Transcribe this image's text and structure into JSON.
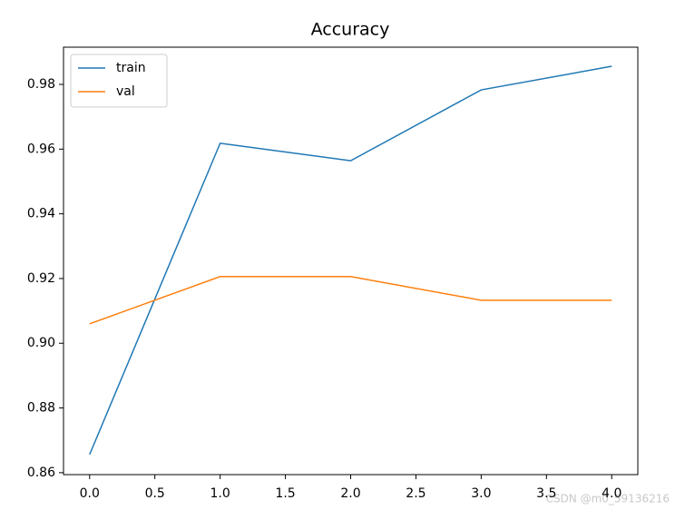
{
  "chart_data": {
    "type": "line",
    "title": "Accuracy",
    "x": [
      0,
      1,
      2,
      3,
      4
    ],
    "series": [
      {
        "name": "train",
        "color": "#1f77b4",
        "values": [
          0.8656,
          0.9618,
          0.9564,
          0.9783,
          0.9856
        ]
      },
      {
        "name": "val",
        "color": "#ff7f0e",
        "values": [
          0.906,
          0.9206,
          0.9206,
          0.9133,
          0.9133
        ]
      }
    ],
    "xlim": [
      -0.2,
      4.2
    ],
    "xticks": [
      {
        "value": 0,
        "label": "0.0"
      },
      {
        "value": 0.5,
        "label": "0.5"
      },
      {
        "value": 1,
        "label": "1.0"
      },
      {
        "value": 1.5,
        "label": "1.5"
      },
      {
        "value": 2,
        "label": "2.0"
      },
      {
        "value": 2.5,
        "label": "2.5"
      },
      {
        "value": 3,
        "label": "3.0"
      },
      {
        "value": 3.5,
        "label": "3.5"
      },
      {
        "value": 4,
        "label": "4.0"
      }
    ],
    "ylim": [
      0.8594,
      0.9915
    ],
    "yticks": [
      0.86,
      0.88,
      {
        "value": 0.9,
        "label": "0.90"
      },
      0.92,
      0.94,
      0.96,
      0.98
    ],
    "legend": "upper left",
    "watermark": "CSDN @m0_59136216"
  }
}
